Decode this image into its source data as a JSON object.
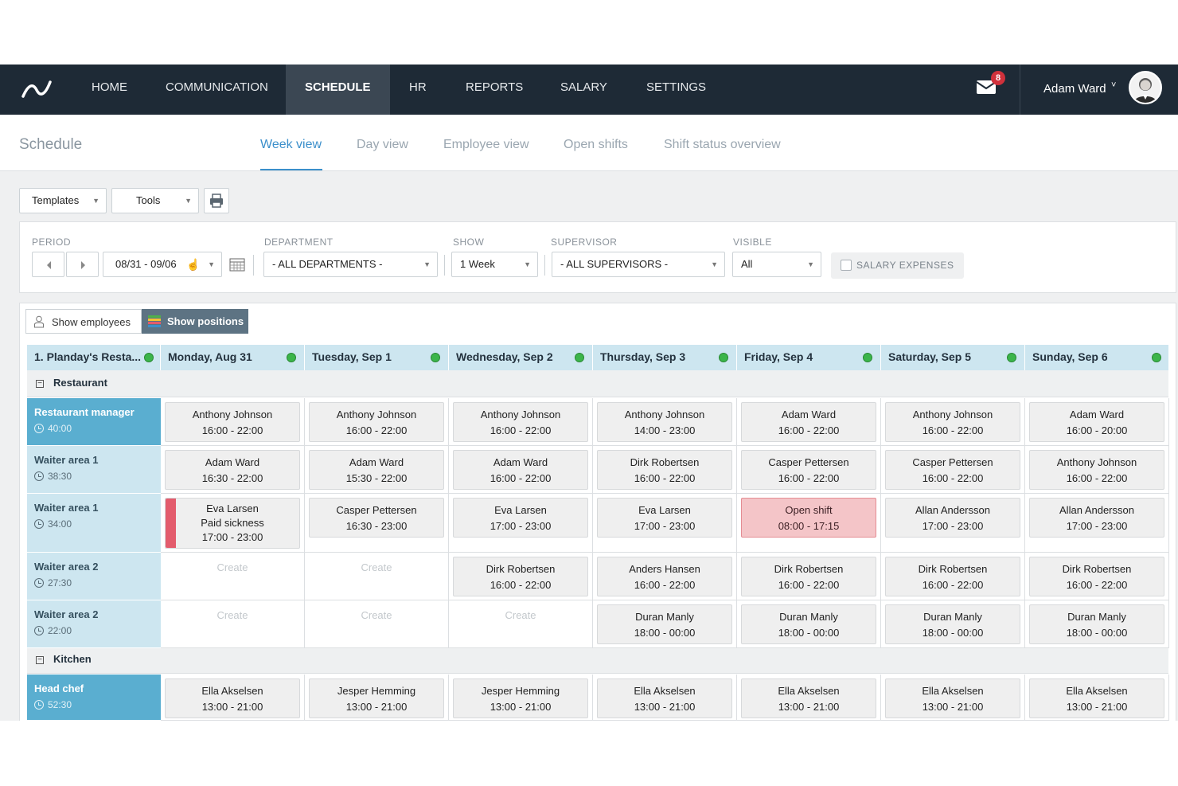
{
  "nav": {
    "items": [
      "HOME",
      "COMMUNICATION",
      "SCHEDULE",
      "HR",
      "REPORTS",
      "SALARY",
      "SETTINGS"
    ],
    "active": "SCHEDULE",
    "mail_count": "8",
    "user_name": "Adam Ward",
    "user_caret": "˅"
  },
  "subheader": {
    "title": "Schedule",
    "tabs": [
      "Week view",
      "Day view",
      "Employee view",
      "Open shifts",
      "Shift status overview"
    ],
    "active_tab": "Week view"
  },
  "toolbar": {
    "templates": "Templates",
    "tools": "Tools"
  },
  "filters": {
    "period_label": "PERIOD",
    "period_value": "08/31 - 09/06",
    "department_label": "DEPARTMENT",
    "department_value": "- ALL DEPARTMENTS -",
    "show_label": "SHOW",
    "show_value": "1 Week",
    "supervisor_label": "SUPERVISOR",
    "supervisor_value": "- ALL SUPERVISORS -",
    "visible_label": "VISIBLE",
    "visible_value": "All",
    "salary_expenses": "SALARY EXPENSES"
  },
  "view_toggle": {
    "show_employees": "Show employees",
    "show_positions": "Show positions"
  },
  "grid": {
    "corner": "1. Planday's Resta...",
    "days": [
      "Monday, Aug 31",
      "Tuesday, Sep 1",
      "Wednesday, Sep 2",
      "Thursday, Sep 3",
      "Friday, Sep 4",
      "Saturday, Sep 5",
      "Sunday, Sep 6"
    ],
    "groups": {
      "restaurant": "Restaurant",
      "kitchen": "Kitchen"
    },
    "create_label": "Create",
    "rows": [
      {
        "name": "Restaurant manager",
        "hours": "40:00",
        "shifts": [
          {
            "who": "Anthony Johnson",
            "time": "16:00 - 22:00"
          },
          {
            "who": "Anthony Johnson",
            "time": "16:00 - 22:00"
          },
          {
            "who": "Anthony Johnson",
            "time": "16:00 - 22:00"
          },
          {
            "who": "Anthony Johnson",
            "time": "14:00 - 23:00"
          },
          {
            "who": "Adam Ward",
            "time": "16:00 - 22:00"
          },
          {
            "who": "Anthony Johnson",
            "time": "16:00 - 22:00"
          },
          {
            "who": "Adam Ward",
            "time": "16:00 - 20:00"
          }
        ]
      },
      {
        "name": "Waiter area 1",
        "hours": "38:30",
        "shifts": [
          {
            "who": "Adam Ward",
            "time": "16:30 - 22:00"
          },
          {
            "who": "Adam Ward",
            "time": "15:30 - 22:00"
          },
          {
            "who": "Adam Ward",
            "time": "16:00 - 22:00"
          },
          {
            "who": "Dirk Robertsen",
            "time": "16:00 - 22:00"
          },
          {
            "who": "Casper Pettersen",
            "time": "16:00 - 22:00"
          },
          {
            "who": "Casper Pettersen",
            "time": "16:00 - 22:00"
          },
          {
            "who": "Anthony Johnson",
            "time": "16:00 - 22:00"
          }
        ]
      },
      {
        "name": "Waiter area 1",
        "hours": "34:00",
        "shifts": [
          {
            "who": "Eva Larsen",
            "note": "Paid sickness",
            "time": "17:00 - 23:00"
          },
          {
            "who": "Casper Pettersen",
            "time": "16:30 - 23:00"
          },
          {
            "who": "Eva Larsen",
            "time": "17:00 - 23:00"
          },
          {
            "who": "Eva Larsen",
            "time": "17:00 - 23:00"
          },
          {
            "who": "Open shift",
            "time": "08:00 - 17:15"
          },
          {
            "who": "Allan Andersson",
            "time": "17:00 - 23:00"
          },
          {
            "who": "Allan Andersson",
            "time": "17:00 - 23:00"
          }
        ]
      },
      {
        "name": "Waiter area 2",
        "hours": "27:30",
        "shifts": [
          {
            "who": "Dirk Robertsen",
            "time": "16:00 - 22:00"
          },
          {
            "who": "Anders Hansen",
            "time": "16:00 - 22:00"
          },
          {
            "who": "Dirk Robertsen",
            "time": "16:00 - 22:00"
          },
          {
            "who": "Dirk Robertsen",
            "time": "16:00 - 22:00"
          },
          {
            "who": "Dirk Robertsen",
            "time": "16:00 - 22:00"
          }
        ]
      },
      {
        "name": "Waiter area 2",
        "hours": "22:00",
        "shifts": [
          {
            "who": "Duran Manly",
            "time": "18:00 - 00:00"
          },
          {
            "who": "Duran Manly",
            "time": "18:00 - 00:00"
          },
          {
            "who": "Duran Manly",
            "time": "18:00 - 00:00"
          },
          {
            "who": "Duran Manly",
            "time": "18:00 - 00:00"
          }
        ]
      },
      {
        "name": "Head chef",
        "hours": "52:30",
        "shifts": [
          {
            "who": "Ella Akselsen",
            "time": "13:00 - 21:00"
          },
          {
            "who": "Jesper Hemming",
            "time": "13:00 - 21:00"
          },
          {
            "who": "Jesper Hemming",
            "time": "13:00 - 21:00"
          },
          {
            "who": "Ella Akselsen",
            "time": "13:00 - 21:00"
          },
          {
            "who": "Ella Akselsen",
            "time": "13:00 - 21:00"
          },
          {
            "who": "Ella Akselsen",
            "time": "13:00 - 21:00"
          },
          {
            "who": "Ella Akselsen",
            "time": "13:00 - 21:00"
          }
        ]
      }
    ]
  },
  "colors": {
    "nav_bg": "#1e2a36",
    "accent": "#3b8fcb",
    "position_header": "#cde6f0",
    "manager_position": "#5aaed0",
    "open_shift": "#f4c5c8",
    "sick_marker": "#e35c6d",
    "status_ok": "#3bb54a"
  }
}
